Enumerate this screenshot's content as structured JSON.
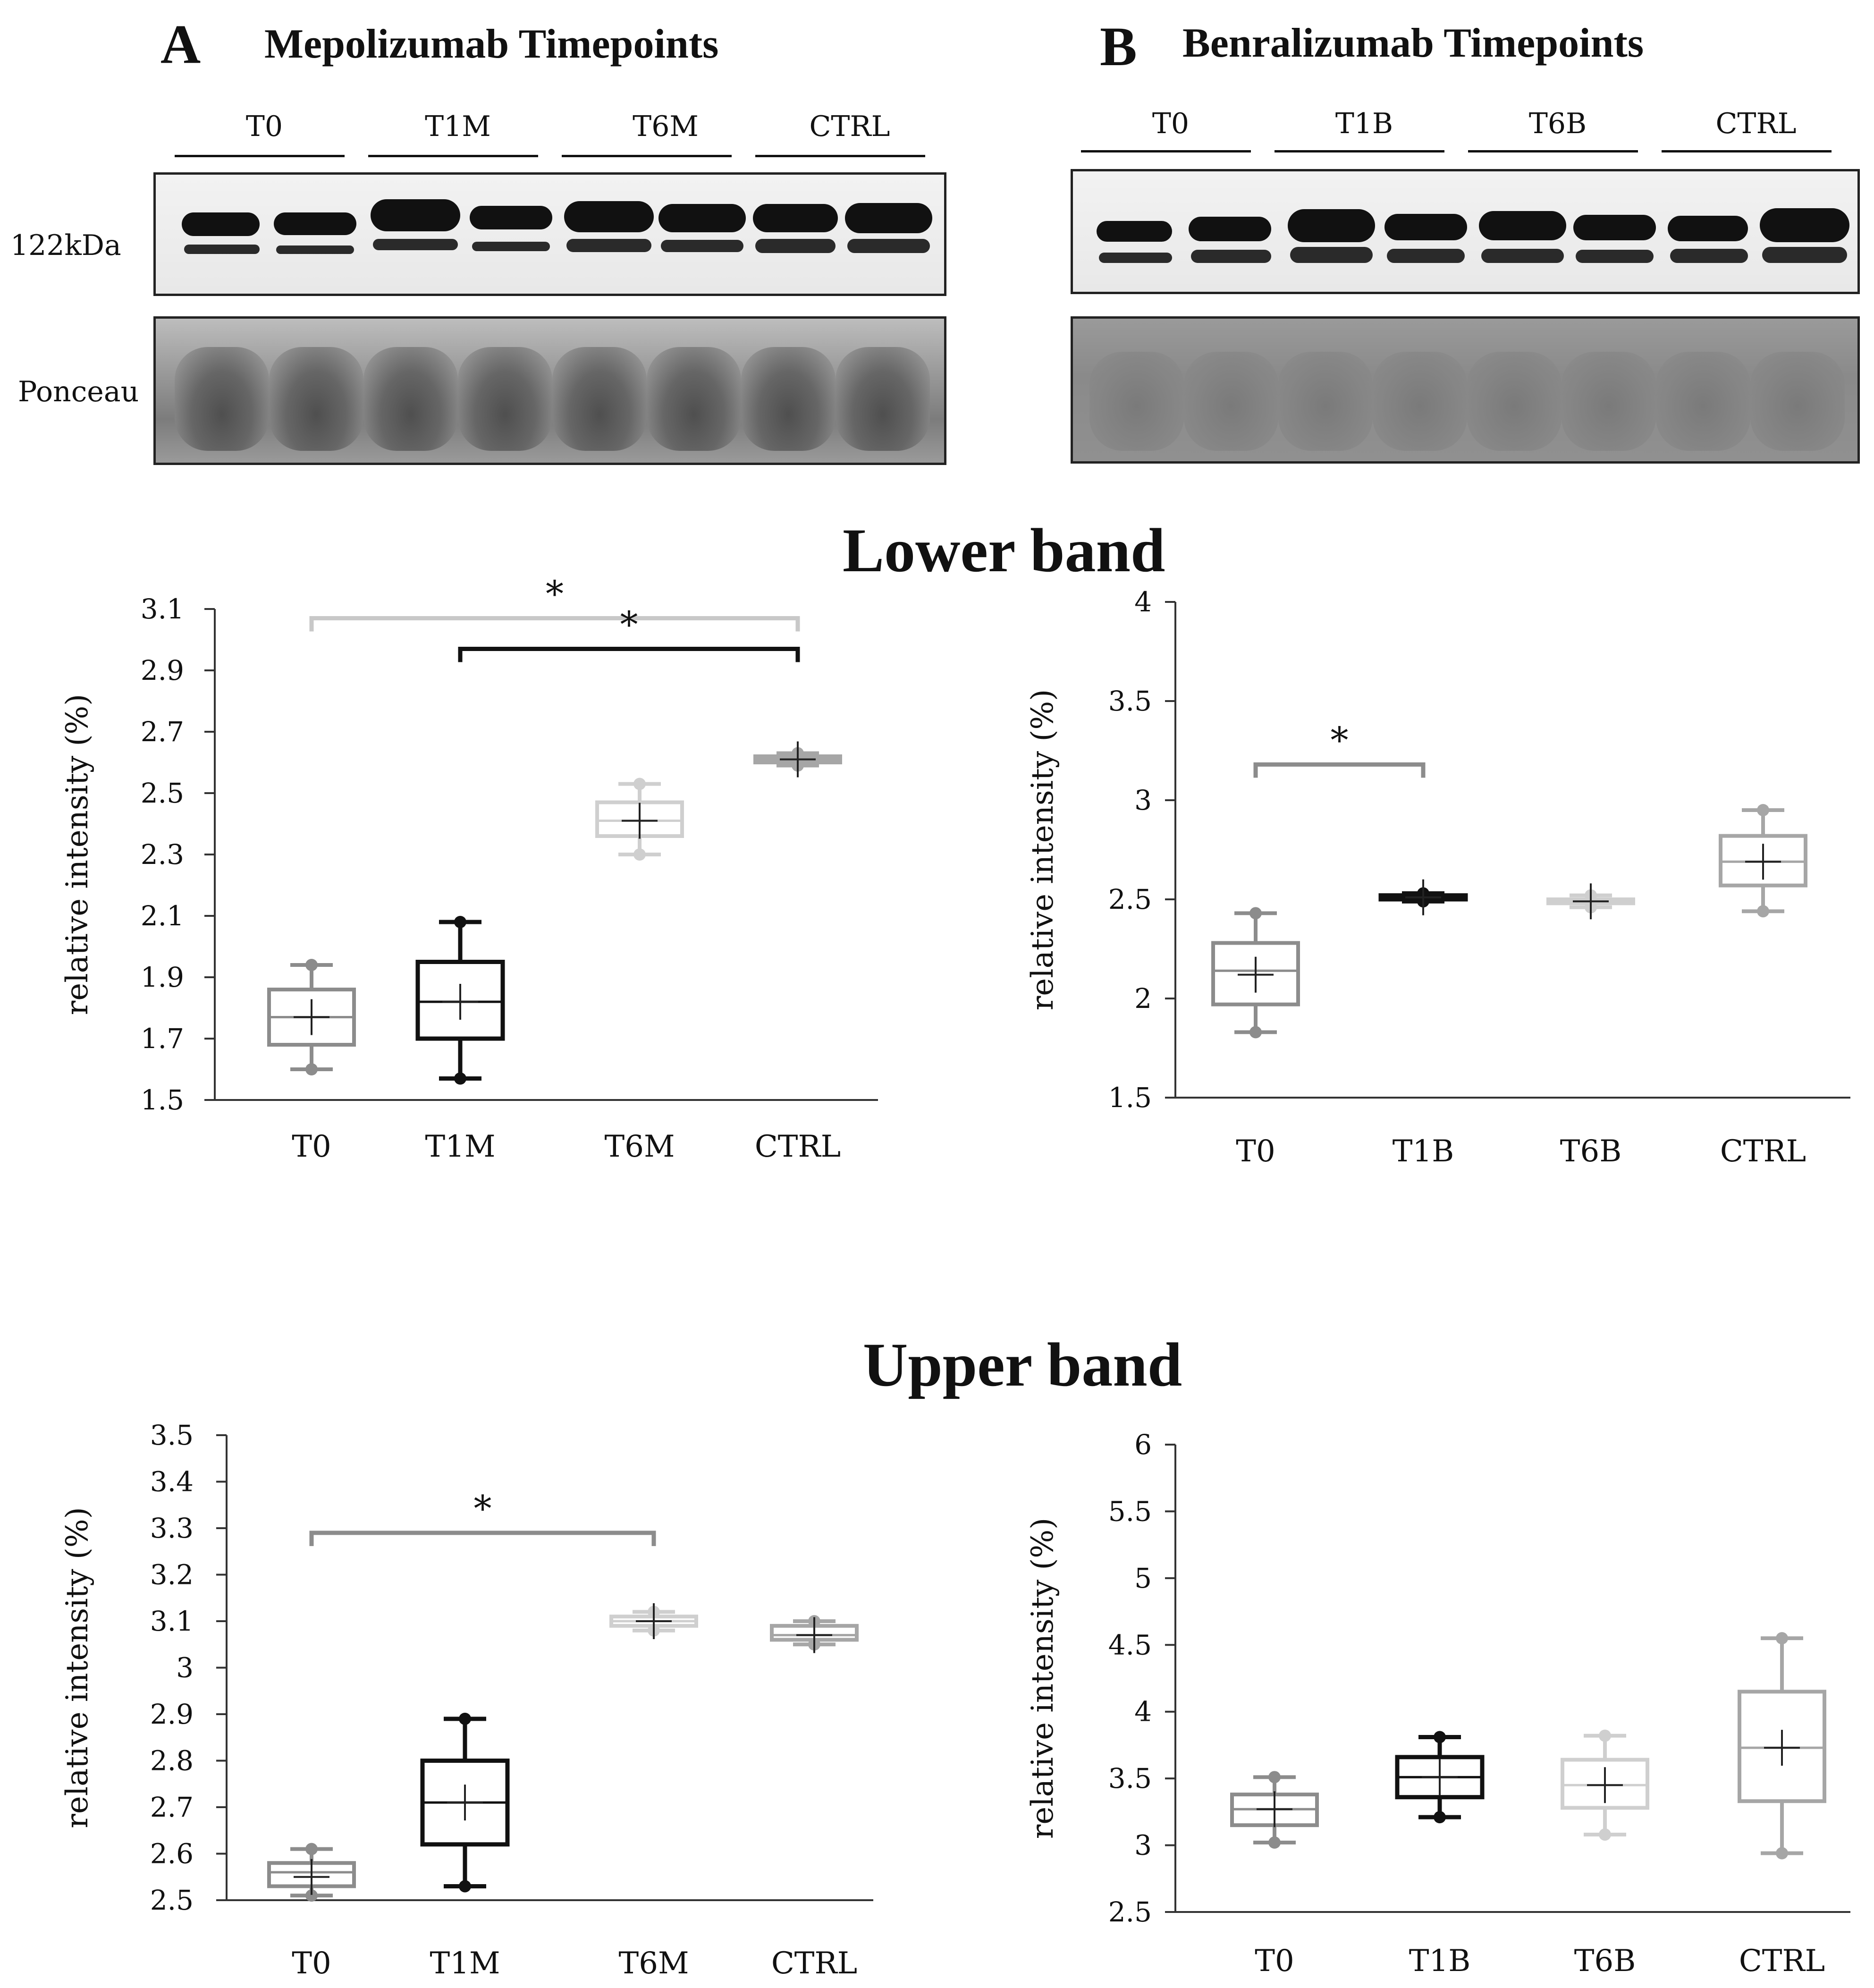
{
  "blots": {
    "A": {
      "letter": "A",
      "title": "Mepolizumab Timepoints",
      "lanes": [
        "T0",
        "T1M",
        "T6M",
        "CTRL"
      ],
      "side_labels": {
        "bands": "122kDa",
        "ponceau": "Ponceau"
      }
    },
    "B": {
      "letter": "B",
      "title": "Benralizumab Timepoints",
      "lanes": [
        "T0",
        "T1B",
        "T6B",
        "CTRL"
      ]
    }
  },
  "sections": {
    "lower": "Lower band",
    "upper": "Upper band"
  },
  "colors": {
    "T0": "#8c8c8c",
    "T1": "#111111",
    "T6": "#cfcfcf",
    "CTRL": "#a6a6a6",
    "axis": "#333333",
    "significance": "*"
  },
  "chart_data": [
    {
      "id": "lower-mepo",
      "type": "box",
      "title": "Lower band",
      "ylabel": "relative intensity (%)",
      "ylim": [
        1.5,
        3.1
      ],
      "yticks": [
        "1.5",
        "1.7",
        "1.9",
        "2.1",
        "2.3",
        "2.5",
        "2.7",
        "2.9",
        "3.1"
      ],
      "categories": [
        "T0",
        "T1M",
        "T6M",
        "CTRL"
      ],
      "boxes": [
        {
          "min": 1.6,
          "q1": 1.68,
          "median": 1.77,
          "mean": 1.77,
          "q3": 1.86,
          "max": 1.94,
          "color": "#8c8c8c"
        },
        {
          "min": 1.57,
          "q1": 1.7,
          "median": 1.82,
          "mean": 1.82,
          "q3": 1.95,
          "max": 2.08,
          "color": "#111111"
        },
        {
          "min": 2.3,
          "q1": 2.36,
          "median": 2.41,
          "mean": 2.41,
          "q3": 2.47,
          "max": 2.53,
          "color": "#cfcfcf"
        },
        {
          "min": 2.59,
          "q1": 2.6,
          "median": 2.61,
          "mean": 2.61,
          "q3": 2.62,
          "max": 2.63,
          "color": "#a6a6a6"
        }
      ],
      "brackets": [
        {
          "from": 0,
          "to": 3,
          "y": 3.07,
          "label": "*",
          "color": "#c8c8c8"
        },
        {
          "from": 1,
          "to": 3,
          "y": 2.97,
          "label": "*",
          "color": "#111111"
        }
      ]
    },
    {
      "id": "lower-benra",
      "type": "box",
      "title": "Lower band",
      "ylabel": "relative intensity (%)",
      "ylim": [
        1.5,
        4.0
      ],
      "yticks": [
        "1.5",
        "2",
        "2.5",
        "3",
        "3.5",
        "4"
      ],
      "categories": [
        "T0",
        "T1B",
        "T6B",
        "CTRL"
      ],
      "boxes": [
        {
          "min": 1.83,
          "q1": 1.97,
          "median": 2.14,
          "mean": 2.12,
          "q3": 2.28,
          "max": 2.43,
          "color": "#8c8c8c"
        },
        {
          "min": 2.49,
          "q1": 2.5,
          "median": 2.51,
          "mean": 2.51,
          "q3": 2.52,
          "max": 2.53,
          "color": "#111111"
        },
        {
          "min": 2.46,
          "q1": 2.48,
          "median": 2.49,
          "mean": 2.49,
          "q3": 2.5,
          "max": 2.52,
          "color": "#cfcfcf"
        },
        {
          "min": 2.44,
          "q1": 2.57,
          "median": 2.69,
          "mean": 2.69,
          "q3": 2.82,
          "max": 2.95,
          "color": "#a6a6a6"
        }
      ],
      "brackets": [
        {
          "from": 0,
          "to": 1,
          "y": 3.18,
          "label": "*",
          "color": "#8c8c8c"
        }
      ]
    },
    {
      "id": "upper-mepo",
      "type": "box",
      "title": "Upper band",
      "ylabel": "relative intensity (%)",
      "ylim": [
        2.5,
        3.5
      ],
      "yticks": [
        "2.5",
        "2.6",
        "2.7",
        "2.8",
        "2.9",
        "3",
        "3.1",
        "3.2",
        "3.3",
        "3.4",
        "3.5"
      ],
      "categories": [
        "T0",
        "T1M",
        "T6M",
        "CTRL"
      ],
      "boxes": [
        {
          "min": 2.51,
          "q1": 2.53,
          "median": 2.56,
          "mean": 2.55,
          "q3": 2.58,
          "max": 2.61,
          "color": "#8c8c8c"
        },
        {
          "min": 2.53,
          "q1": 2.62,
          "median": 2.71,
          "mean": 2.71,
          "q3": 2.8,
          "max": 2.89,
          "color": "#111111"
        },
        {
          "min": 3.08,
          "q1": 3.09,
          "median": 3.1,
          "mean": 3.1,
          "q3": 3.11,
          "max": 3.12,
          "color": "#cfcfcf"
        },
        {
          "min": 3.05,
          "q1": 3.06,
          "median": 3.07,
          "mean": 3.07,
          "q3": 3.09,
          "max": 3.1,
          "color": "#a6a6a6"
        }
      ],
      "brackets": [
        {
          "from": 0,
          "to": 2,
          "y": 3.29,
          "label": "*",
          "color": "#8c8c8c"
        }
      ]
    },
    {
      "id": "upper-benra",
      "type": "box",
      "title": "Upper band",
      "ylabel": "relative intensity (%)",
      "ylim": [
        2.5,
        6.0
      ],
      "yticks": [
        "2.5",
        "3",
        "3.5",
        "4",
        "4.5",
        "5",
        "5.5",
        "6"
      ],
      "categories": [
        "T0",
        "T1B",
        "T6B",
        "CTRL"
      ],
      "boxes": [
        {
          "min": 3.02,
          "q1": 3.15,
          "median": 3.27,
          "mean": 3.27,
          "q3": 3.38,
          "max": 3.51,
          "color": "#8c8c8c"
        },
        {
          "min": 3.21,
          "q1": 3.36,
          "median": 3.51,
          "mean": 3.51,
          "q3": 3.66,
          "max": 3.81,
          "color": "#111111"
        },
        {
          "min": 3.08,
          "q1": 3.28,
          "median": 3.45,
          "mean": 3.45,
          "q3": 3.64,
          "max": 3.82,
          "color": "#cfcfcf"
        },
        {
          "min": 2.94,
          "q1": 3.33,
          "median": 3.73,
          "mean": 3.73,
          "q3": 4.15,
          "max": 4.55,
          "color": "#a6a6a6"
        }
      ],
      "brackets": []
    }
  ]
}
